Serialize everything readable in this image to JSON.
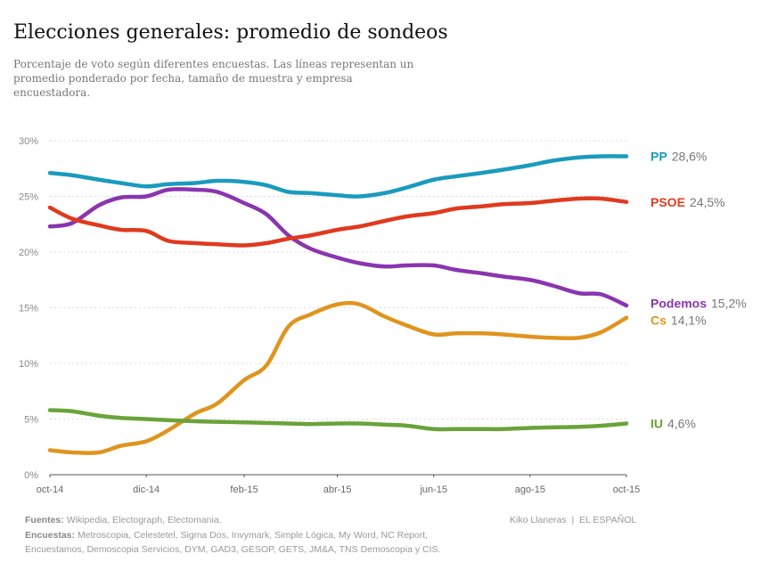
{
  "title": "Elecciones generales: promedio de sondeos",
  "subtitle": "Porcentaje de voto según diferentes encuestas. Las líneas representan un promedio ponderado por fecha, tamaño de muestra y empresa encuestadora.",
  "footer": {
    "sources_label": "Fuentes:",
    "sources": "Wikipedia, Electograph, Electomania.",
    "polls_label": "Encuestas:",
    "polls": "Metroscopia, Celestetel, Sigma Dos, Invymark, Simple Lógica, My Word, NC Report, Encuestamos, Demoscopia Servicios, DYM, GAD3, GESOP, GETS, JM&A, TNS Demoscopia y CIS.",
    "credit": "Kiko Llaneras  |  EL ESPAÑOL"
  },
  "chart_data": {
    "type": "line",
    "xlim": [
      "2014-10-01",
      "2015-10-01"
    ],
    "ylim": [
      0,
      30
    ],
    "x_ticks": [
      {
        "date": "2014-10-01",
        "label": "oct-14"
      },
      {
        "date": "2014-12-01",
        "label": "dic-14"
      },
      {
        "date": "2015-02-01",
        "label": "feb-15"
      },
      {
        "date": "2015-04-01",
        "label": "abr-15"
      },
      {
        "date": "2015-06-01",
        "label": "jun-15"
      },
      {
        "date": "2015-08-01",
        "label": "ago-15"
      },
      {
        "date": "2015-10-01",
        "label": "oct-15"
      }
    ],
    "y_ticks": [
      {
        "value": 0,
        "label": "0%"
      },
      {
        "value": 5,
        "label": "5%"
      },
      {
        "value": 10,
        "label": "10%"
      },
      {
        "value": 15,
        "label": "15%"
      },
      {
        "value": 20,
        "label": "20%"
      },
      {
        "value": 25,
        "label": "25%"
      },
      {
        "value": 30,
        "label": "30%"
      }
    ],
    "grid": true,
    "x": [
      "2014-10-01",
      "2014-10-15",
      "2014-11-01",
      "2014-11-15",
      "2014-12-01",
      "2014-12-15",
      "2015-01-01",
      "2015-01-15",
      "2015-02-01",
      "2015-02-15",
      "2015-03-01",
      "2015-03-15",
      "2015-04-01",
      "2015-04-15",
      "2015-05-01",
      "2015-05-15",
      "2015-06-01",
      "2015-06-15",
      "2015-07-01",
      "2015-07-15",
      "2015-08-01",
      "2015-08-15",
      "2015-09-01",
      "2015-09-15",
      "2015-10-01"
    ],
    "series": [
      {
        "name": "PP",
        "final_label": "28,6%",
        "color": "#1a9bbd",
        "values": [
          27.1,
          26.9,
          26.5,
          26.2,
          25.9,
          26.1,
          26.2,
          26.4,
          26.3,
          26.0,
          25.4,
          25.3,
          25.1,
          25.0,
          25.3,
          25.8,
          26.5,
          26.8,
          27.1,
          27.4,
          27.8,
          28.2,
          28.5,
          28.6,
          28.6
        ]
      },
      {
        "name": "PSOE",
        "final_label": "24,5%",
        "color": "#e03a1e",
        "values": [
          24.0,
          23.0,
          22.4,
          22.0,
          21.9,
          21.0,
          20.8,
          20.7,
          20.6,
          20.8,
          21.2,
          21.5,
          22.0,
          22.3,
          22.8,
          23.2,
          23.5,
          23.9,
          24.1,
          24.3,
          24.4,
          24.6,
          24.8,
          24.8,
          24.5
        ]
      },
      {
        "name": "Podemos",
        "final_label": "15,2%",
        "color": "#8a35b0",
        "values": [
          22.3,
          22.6,
          24.2,
          24.9,
          25.0,
          25.6,
          25.6,
          25.4,
          24.4,
          23.4,
          21.5,
          20.3,
          19.5,
          19.0,
          18.7,
          18.8,
          18.8,
          18.4,
          18.1,
          17.8,
          17.5,
          17.0,
          16.3,
          16.2,
          15.2
        ]
      },
      {
        "name": "Cs",
        "final_label": "14,1%",
        "color": "#e0941e",
        "values": [
          2.2,
          2.0,
          2.0,
          2.6,
          3.0,
          4.0,
          5.5,
          6.4,
          8.5,
          9.8,
          13.3,
          14.4,
          15.3,
          15.3,
          14.2,
          13.4,
          12.6,
          12.7,
          12.7,
          12.6,
          12.4,
          12.3,
          12.3,
          12.8,
          14.1
        ]
      },
      {
        "name": "IU",
        "final_label": "4,6%",
        "color": "#6aa33a",
        "values": [
          5.8,
          5.7,
          5.3,
          5.1,
          5.0,
          4.9,
          4.8,
          4.75,
          4.7,
          4.65,
          4.6,
          4.55,
          4.6,
          4.6,
          4.5,
          4.4,
          4.1,
          4.1,
          4.1,
          4.1,
          4.2,
          4.25,
          4.3,
          4.4,
          4.6
        ]
      }
    ]
  }
}
